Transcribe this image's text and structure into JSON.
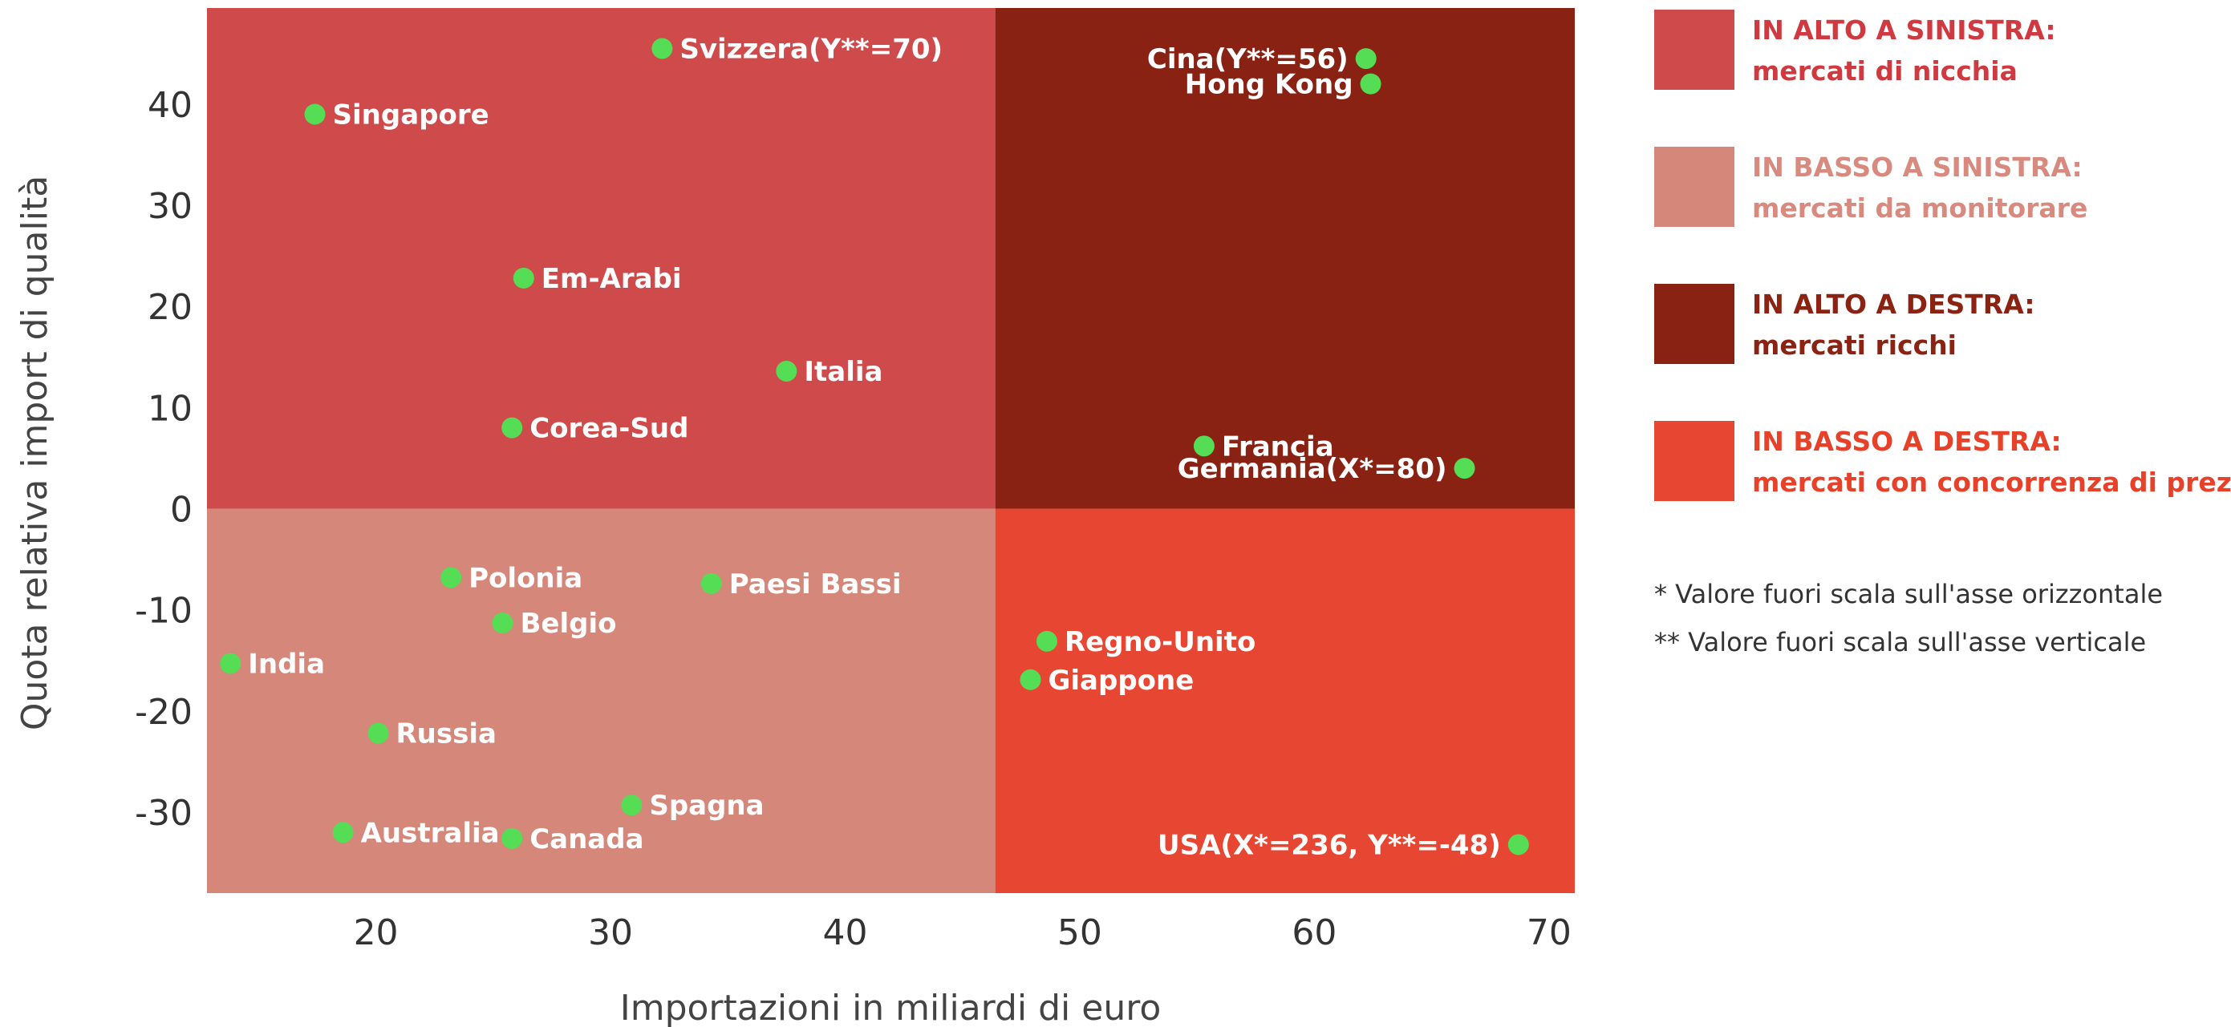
{
  "chart_data": {
    "type": "scatter",
    "xlabel": "Importazioni in miliardi di euro",
    "ylabel": "Quota relativa import di qualità",
    "xlim": [
      12.8,
      71.1
    ],
    "ylim": [
      -38,
      49.5
    ],
    "x_ticks": [
      20,
      30,
      40,
      50,
      60,
      70
    ],
    "y_ticks": [
      40,
      30,
      20,
      10,
      0,
      -10,
      -20,
      -30
    ],
    "x_divider": 46.4,
    "y_divider": 0,
    "grid": false,
    "point_color": "#55dd55",
    "quadrants": [
      {
        "id": "top-left",
        "title": "IN ALTO A SINISTRA:",
        "subtitle": "mercati di nicchia",
        "color": "#cf4a4b",
        "text_color": "#d0393f"
      },
      {
        "id": "bottom-left",
        "title": "IN BASSO A SINISTRA:",
        "subtitle": "mercati da monitorare",
        "color": "#d5877a",
        "text_color": "#d98a7e"
      },
      {
        "id": "top-right",
        "title": "IN ALTO A DESTRA:",
        "subtitle": "mercati ricchi",
        "color": "#8a2214",
        "text_color": "#8c2212"
      },
      {
        "id": "bottom-right",
        "title": "IN BASSO A DESTRA:",
        "subtitle": "mercati con concorrenza di prezzo",
        "color": "#e64632",
        "text_color": "#e8412a"
      }
    ],
    "points": [
      {
        "label": "Svizzera(Y**=70)",
        "x": 32.2,
        "y": 45.5,
        "anchor": "right"
      },
      {
        "label": "Singapore",
        "x": 17.4,
        "y": 39.0,
        "anchor": "right"
      },
      {
        "label": "Em-Arabi",
        "x": 26.3,
        "y": 22.8,
        "anchor": "right"
      },
      {
        "label": "Italia",
        "x": 37.5,
        "y": 13.6,
        "anchor": "right"
      },
      {
        "label": "Corea-Sud",
        "x": 25.8,
        "y": 8.0,
        "anchor": "right"
      },
      {
        "label": "Cina(Y**=56)",
        "x": 62.2,
        "y": 44.5,
        "anchor": "left"
      },
      {
        "label": "Hong Kong",
        "x": 62.4,
        "y": 42.0,
        "anchor": "left"
      },
      {
        "label": "Francia",
        "x": 55.3,
        "y": 6.2,
        "anchor": "right"
      },
      {
        "label": "Germania(X*=80)",
        "x": 66.4,
        "y": 4.0,
        "anchor": "left"
      },
      {
        "label": "Polonia",
        "x": 23.2,
        "y": -6.8,
        "anchor": "right"
      },
      {
        "label": "Paesi Bassi",
        "x": 34.3,
        "y": -7.4,
        "anchor": "right"
      },
      {
        "label": "Belgio",
        "x": 25.4,
        "y": -11.3,
        "anchor": "right"
      },
      {
        "label": "India",
        "x": 13.8,
        "y": -15.3,
        "anchor": "right"
      },
      {
        "label": "Russia",
        "x": 20.1,
        "y": -22.2,
        "anchor": "right"
      },
      {
        "label": "Spagna",
        "x": 30.9,
        "y": -29.3,
        "anchor": "right"
      },
      {
        "label": "Australia",
        "x": 18.6,
        "y": -32.0,
        "anchor": "right"
      },
      {
        "label": "Canada",
        "x": 25.8,
        "y": -32.6,
        "anchor": "right"
      },
      {
        "label": "Regno-Unito",
        "x": 48.6,
        "y": -13.1,
        "anchor": "right"
      },
      {
        "label": "Giappone",
        "x": 47.9,
        "y": -16.9,
        "anchor": "right"
      },
      {
        "label": "USA(X*=236, Y**=-48)",
        "x": 68.7,
        "y": -33.2,
        "anchor": "left"
      }
    ],
    "notes": [
      "* Valore fuori scala sull'asse orizzontale",
      "** Valore fuori scala sull'asse verticale"
    ]
  }
}
